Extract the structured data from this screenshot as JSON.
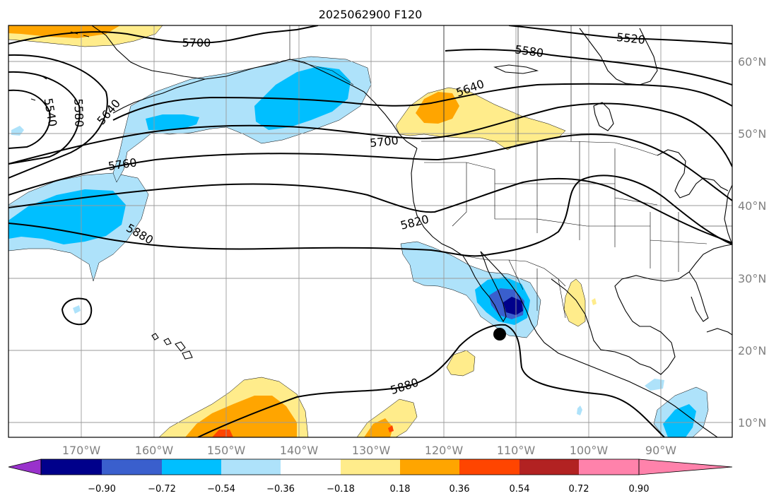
{
  "title": "2025062900 F120",
  "latitude_labels": [
    "60°N",
    "50°N",
    "40°N",
    "30°N",
    "20°N",
    "10°N"
  ],
  "longitude_labels": [
    "170°W",
    "160°W",
    "150°W",
    "140°W",
    "130°W",
    "120°W",
    "110°W",
    "100°W",
    "90°W"
  ],
  "contour_labels": [
    "5700",
    "5520",
    "5580",
    "5640",
    "5580",
    "5540",
    "5640",
    "5700",
    "5760",
    "5820",
    "5880",
    "5880"
  ],
  "colorbar": {
    "tick_labels": [
      "−0.90",
      "−0.72",
      "−0.54",
      "−0.36",
      "−0.18",
      "0.18",
      "0.36",
      "0.54",
      "0.72",
      "0.90"
    ],
    "colors": [
      "#9932cc",
      "#00008b",
      "#3a5fcd",
      "#00bfff",
      "#aee2fa",
      "#ffffff",
      "#ffec8b",
      "#ffa500",
      "#ff4500",
      "#b22222",
      "#ff82ab"
    ]
  },
  "fill_colors": {
    "weak_negative": "#aee2fa",
    "moderate_negative": "#00bfff",
    "strong_negative": "#3a5fcd",
    "very_strong_negative": "#00008b",
    "weak_positive": "#ffec8b",
    "moderate_positive": "#ffa500",
    "strong_positive": "#ff4500"
  },
  "markers": [
    {
      "name": "storm-center",
      "lon": -112.5,
      "lat": 22.5
    }
  ]
}
